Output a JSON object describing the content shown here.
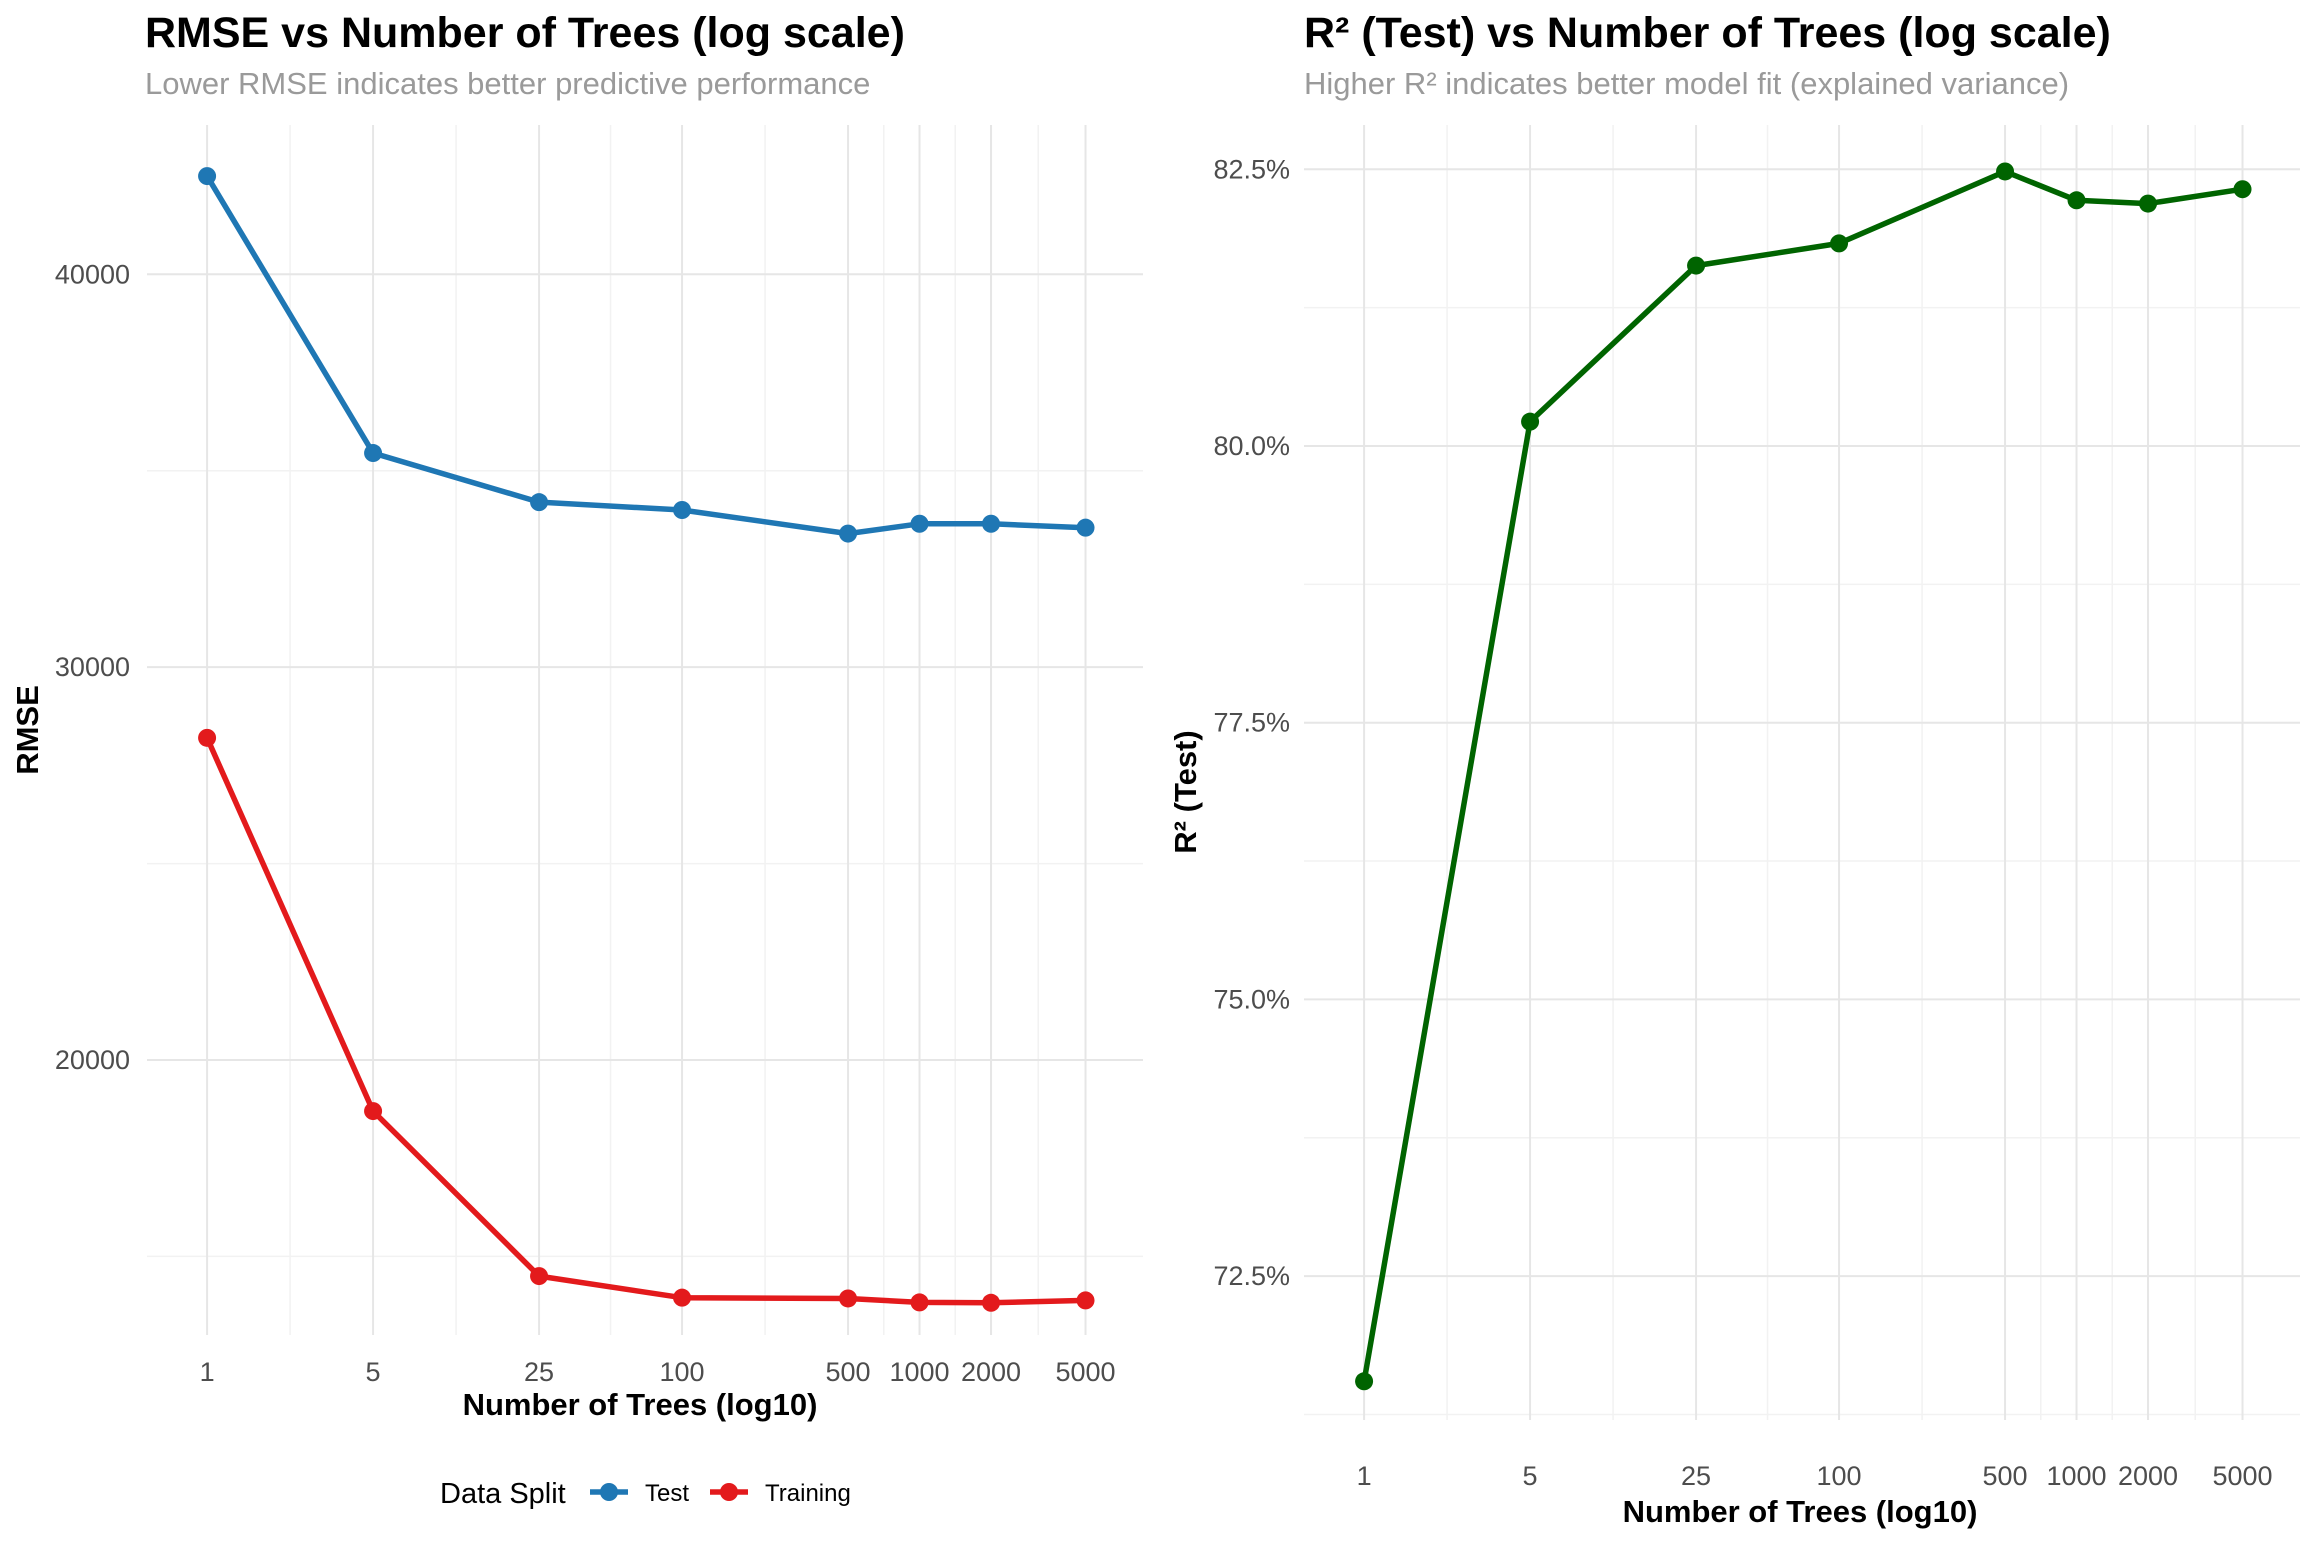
{
  "chart_data": [
    {
      "type": "line",
      "title": "RMSE vs Number of Trees (log scale)",
      "subtitle": "Lower RMSE indicates better predictive performance",
      "xlabel": "Number of Trees (log10)",
      "ylabel": "RMSE",
      "x_scale": "log10",
      "x": [
        1,
        5,
        25,
        100,
        500,
        1000,
        2000,
        5000
      ],
      "x_ticks": [
        "1",
        "5",
        "25",
        "100",
        "500",
        "1000",
        "2000",
        "5000"
      ],
      "y_ticks": [
        "20000",
        "30000",
        "40000"
      ],
      "y_tick_values": [
        20000,
        30000,
        40000
      ],
      "ylim": [
        13000,
        43800
      ],
      "grid": true,
      "legend": {
        "title": "Data Split",
        "position": "bottom",
        "entries": [
          "Test",
          "Training"
        ]
      },
      "series": [
        {
          "name": "Test",
          "color": "#1f77b4",
          "values": [
            42500,
            35450,
            34200,
            34000,
            33400,
            33650,
            33650,
            33550
          ]
        },
        {
          "name": "Training",
          "color": "#e31a1c",
          "values": [
            28200,
            18700,
            14500,
            13950,
            13930,
            13830,
            13820,
            13880
          ]
        }
      ]
    },
    {
      "type": "line",
      "title": "R² (Test) vs Number of Trees (log scale)",
      "subtitle": "Higher R² indicates better model fit (explained variance)",
      "xlabel": "Number of Trees (log10)",
      "ylabel": "R² (Test)",
      "x_scale": "log10",
      "x": [
        1,
        5,
        25,
        100,
        500,
        1000,
        2000,
        5000
      ],
      "x_ticks": [
        "1",
        "5",
        "25",
        "100",
        "500",
        "1000",
        "2000",
        "5000"
      ],
      "y_ticks": [
        "72.5%",
        "75.0%",
        "77.5%",
        "80.0%",
        "82.5%"
      ],
      "y_tick_values": [
        72.5,
        75.0,
        77.5,
        80.0,
        82.5
      ],
      "ylim": [
        71.2,
        82.9
      ],
      "grid": true,
      "series": [
        {
          "color": "#006400",
          "values": [
            71.55,
            80.22,
            81.63,
            81.83,
            82.48,
            82.22,
            82.19,
            82.32
          ]
        }
      ]
    }
  ]
}
